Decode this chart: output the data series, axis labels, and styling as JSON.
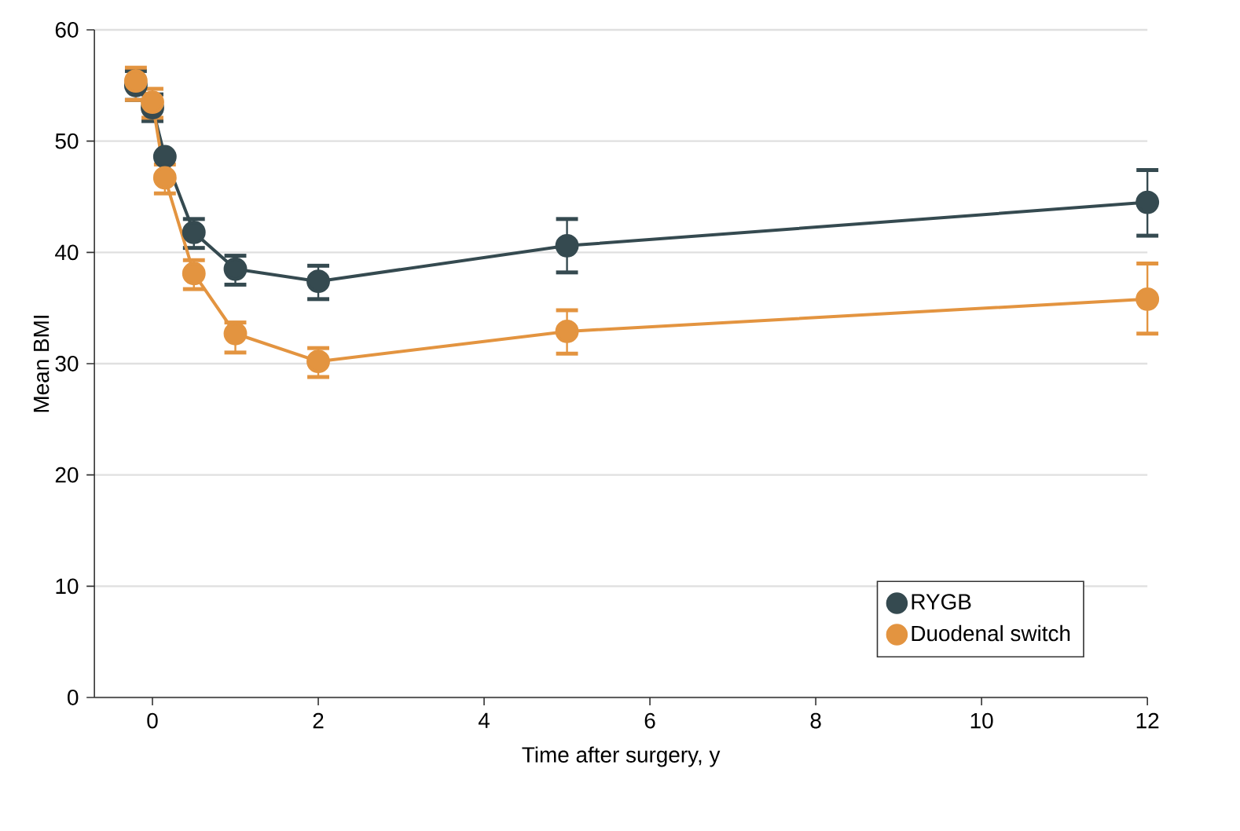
{
  "chart_data": {
    "type": "line",
    "xlabel": "Time after surgery, y",
    "ylabel": "Mean BMI",
    "x": [
      -0.2,
      0,
      0.15,
      0.5,
      1,
      2,
      5,
      12
    ],
    "series": [
      {
        "name": "RYGB",
        "color": "#354a50",
        "values": [
          55,
          53,
          48.6,
          41.8,
          38.5,
          37.4,
          40.6,
          44.5
        ],
        "errors": [
          [
            53.7,
            56.3
          ],
          [
            51.8,
            54.2
          ],
          null,
          [
            40.4,
            43
          ],
          [
            37.1,
            39.7
          ],
          [
            35.8,
            38.8
          ],
          [
            38.2,
            43
          ],
          [
            41.5,
            47.4
          ]
        ]
      },
      {
        "name": "Duodenal switch",
        "color": "#e39440",
        "values": [
          55.4,
          53.5,
          46.7,
          38.1,
          32.7,
          30.2,
          32.9,
          35.8
        ],
        "errors": [
          [
            53.7,
            56.6
          ],
          [
            52.1,
            54.7
          ],
          [
            45.3,
            47.9
          ],
          [
            36.7,
            39.3
          ],
          [
            31,
            33.7
          ],
          [
            28.8,
            31.4
          ],
          [
            30.9,
            34.8
          ],
          [
            32.7,
            39
          ]
        ]
      }
    ],
    "xlim": [
      -0.7,
      12
    ],
    "ylim": [
      0,
      60
    ],
    "xticks": [
      0,
      2,
      4,
      6,
      8,
      10,
      12
    ],
    "yticks": [
      0,
      10,
      20,
      30,
      40,
      50,
      60
    ],
    "grid": "y",
    "legend": "bottom right",
    "marker": "circle",
    "line_style": "solid"
  }
}
